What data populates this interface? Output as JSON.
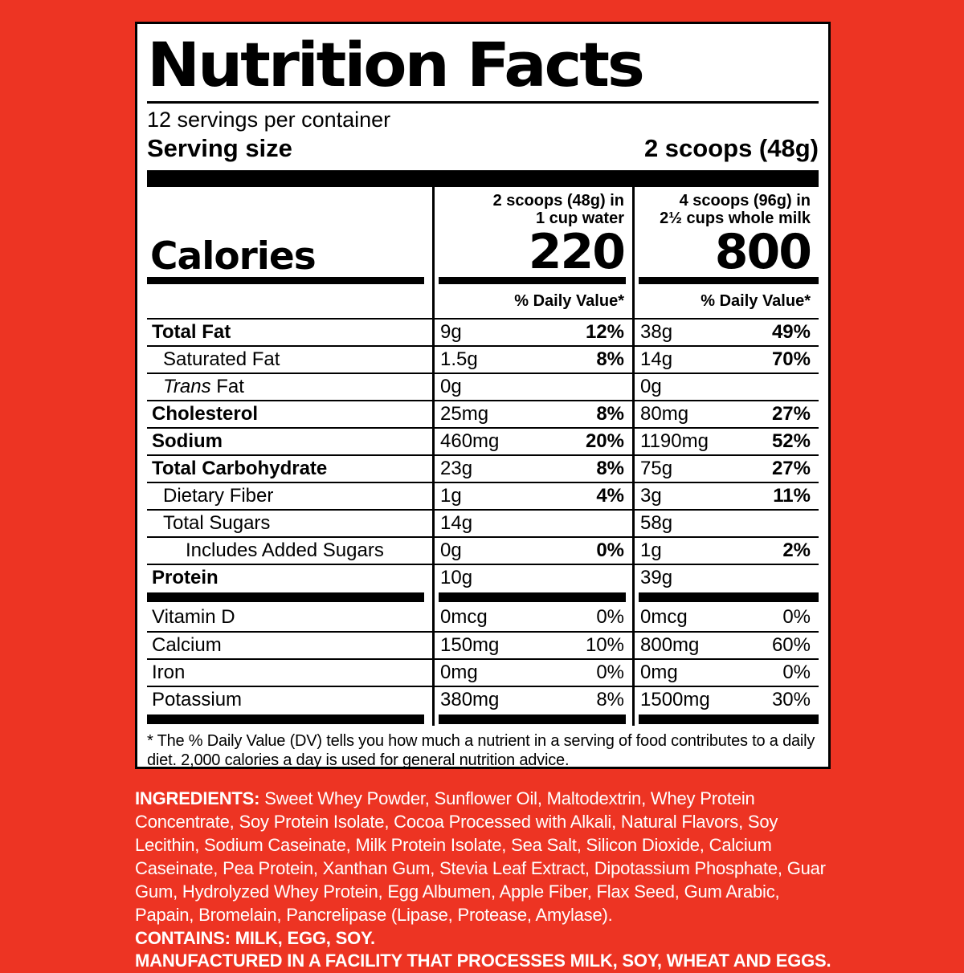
{
  "colors": {
    "background": "#ED3423",
    "panel": "#FFFFFF",
    "label_text": "#000000",
    "ingredients_text": "#FFFFFF"
  },
  "label": {
    "title": "Nutrition Facts",
    "servings_per_container": "12 servings per container",
    "serving_size_label": "Serving size",
    "serving_size_value": "2 scoops (48g)",
    "calories_word": "Calories",
    "daily_value_header": "% Daily Value*",
    "columns": [
      {
        "header_line1": "2 scoops (48g) in",
        "header_line2": "1 cup water",
        "calories": "220"
      },
      {
        "header_line1": "4 scoops (96g) in",
        "header_line2": "2½ cups whole milk",
        "calories": "800"
      }
    ],
    "nutrient_rows": [
      {
        "name": "Total Fat",
        "bold": true,
        "indent": 0,
        "a1": "9g",
        "d1": "12%",
        "a2": "38g",
        "d2": "49%"
      },
      {
        "name": "Saturated Fat",
        "bold": false,
        "indent": 1,
        "a1": "1.5g",
        "d1": "8%",
        "a2": "14g",
        "d2": "70%"
      },
      {
        "italic": "Trans",
        "name": " Fat",
        "bold": false,
        "indent": 1,
        "a1": "0g",
        "d1": "",
        "a2": "0g",
        "d2": ""
      },
      {
        "name": "Cholesterol",
        "bold": true,
        "indent": 0,
        "a1": "25mg",
        "d1": "8%",
        "a2": "80mg",
        "d2": "27%"
      },
      {
        "name": "Sodium",
        "bold": true,
        "indent": 0,
        "a1": "460mg",
        "d1": "20%",
        "a2": "1190mg",
        "d2": "52%"
      },
      {
        "name": "Total Carbohydrate",
        "bold": true,
        "indent": 0,
        "a1": "23g",
        "d1": "8%",
        "a2": "75g",
        "d2": "27%"
      },
      {
        "name": "Dietary Fiber",
        "bold": false,
        "indent": 1,
        "a1": "1g",
        "d1": "4%",
        "a2": "3g",
        "d2": "11%"
      },
      {
        "name": "Total Sugars",
        "bold": false,
        "indent": 1,
        "a1": "14g",
        "d1": "",
        "a2": "58g",
        "d2": ""
      },
      {
        "name": "Includes Added Sugars",
        "bold": false,
        "indent": 2,
        "a1": "0g",
        "d1": "0%",
        "a2": "1g",
        "d2": "2%"
      },
      {
        "name": "Protein",
        "bold": true,
        "indent": 0,
        "a1": "10g",
        "d1": "",
        "a2": "39g",
        "d2": ""
      }
    ],
    "vitamin_rows": [
      {
        "name": "Vitamin D",
        "a1": "0mcg",
        "d1": "0%",
        "a2": "0mcg",
        "d2": "0%"
      },
      {
        "name": "Calcium",
        "a1": "150mg",
        "d1": "10%",
        "a2": "800mg",
        "d2": "60%"
      },
      {
        "name": "Iron",
        "a1": "0mg",
        "d1": "0%",
        "a2": "0mg",
        "d2": "0%"
      },
      {
        "name": "Potassium",
        "a1": "380mg",
        "d1": "8%",
        "a2": "1500mg",
        "d2": "30%"
      }
    ],
    "footnote": "* The % Daily Value (DV) tells you how much a nutrient in a serving of food contributes to a daily diet. 2,000 calories a day is used for general nutrition advice."
  },
  "ingredients": {
    "label": "INGREDIENTS:",
    "text": " Sweet Whey Powder, Sunflower Oil, Maltodextrin, Whey Protein Concentrate, Soy Protein Isolate, Cocoa Processed with Alkali, Natural Flavors, Soy Lecithin, Sodium Caseinate, Milk Protein Isolate, Sea Salt, Silicon Dioxide, Calcium Caseinate, Pea Protein, Xanthan Gum, Stevia Leaf Extract, Dipotassium Phosphate, Guar Gum, Hydrolyzed Whey Protein, Egg Albumen, Apple Fiber, Flax Seed, Gum Arabic, Papain, Bromelain, Pancrelipase (Lipase, Protease, Amylase).",
    "contains": "CONTAINS: MILK, EGG, SOY.",
    "manufactured": "MANUFACTURED IN A FACILITY THAT PROCESSES MILK, SOY, WHEAT AND EGGS."
  }
}
